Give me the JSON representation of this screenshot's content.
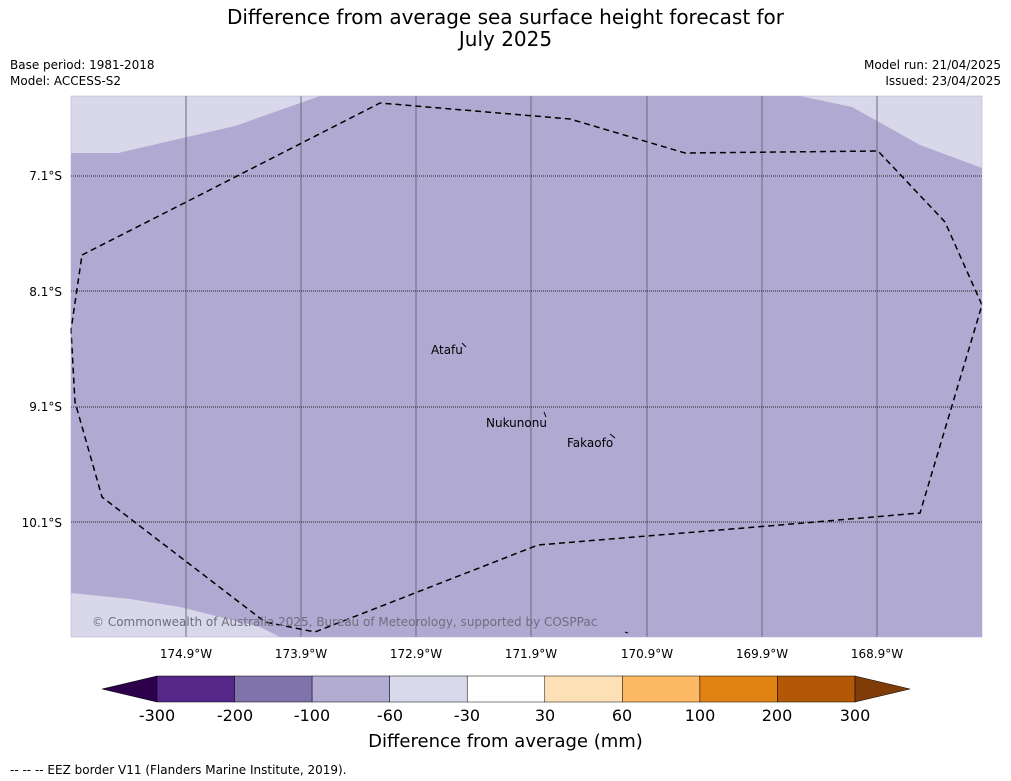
{
  "title_line1": "Difference from average sea surface height forecast for",
  "title_line2": "July 2025",
  "base_period": "Base period: 1981-2018",
  "model": "Model: ACCESS-S2",
  "model_run": "Model run: 21/04/2025",
  "issued": "Issued: 23/04/2025",
  "map": {
    "lat_labels": [
      "7.1°S",
      "8.1°S",
      "9.1°S",
      "10.1°S"
    ],
    "lon_labels": [
      "174.9°W",
      "173.9°W",
      "172.9°W",
      "171.9°W",
      "170.9°W",
      "169.9°W",
      "168.9°W"
    ],
    "places": [
      "Atafu",
      "Nukunonu",
      "Fakaofo"
    ],
    "copyright": "© Commonwealth of Australia 2025, Bureau of Meteorology, supported by COSPPac",
    "colors": {
      "minus_100_to_minus_60": "#b0aad2",
      "minus_60_to_minus_30": "#d8d8ea"
    }
  },
  "colorbar": {
    "ticks": [
      "-300",
      "-200",
      "-100",
      "-60",
      "-30",
      "30",
      "60",
      "100",
      "200",
      "300"
    ],
    "colors": [
      "#2d004b",
      "#542788",
      "#8073ac",
      "#b2abd2",
      "#d8daeb",
      "#ffffff",
      "#fee0b6",
      "#fdb863",
      "#e08214",
      "#b35806",
      "#7f3b08"
    ],
    "label": "Difference from average (mm)"
  },
  "footnote": "--  --  -- EEZ border V11 (Flanders Marine Institute, 2019)."
}
